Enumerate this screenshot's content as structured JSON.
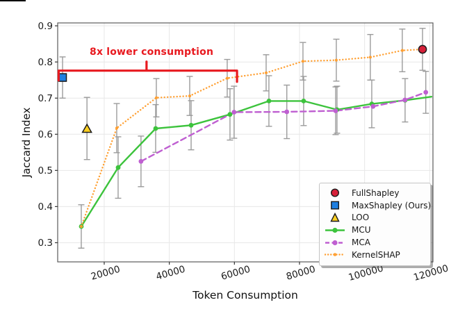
{
  "chart_data": {
    "type": "line",
    "title": "",
    "xlabel": "Token Consumption",
    "ylabel": "Jaccard Index",
    "xlim": [
      5700,
      121000
    ],
    "ylim": [
      0.247,
      0.908
    ],
    "x_ticks": [
      20000,
      40000,
      60000,
      80000,
      100000,
      120000
    ],
    "y_ticks": [
      0.3,
      0.4,
      0.5,
      0.6,
      0.7,
      0.8,
      0.9
    ],
    "grid": true,
    "legend_position": "lower right",
    "annotation": {
      "text": "8x lower consumption",
      "color": "#e8191f",
      "bracket": {
        "x_start": 6000,
        "x_end": 60800,
        "y": 0.776,
        "tick_x": 33000
      }
    },
    "series": [
      {
        "name": "MCU",
        "color": "#3cc33c",
        "line": "solid",
        "marker": "circle",
        "points": [
          [
            12950,
            0.345,
            0.06
          ],
          [
            24270,
            0.508,
            0.085
          ],
          [
            35800,
            0.616,
            0.066
          ],
          [
            46700,
            0.625,
            0.068
          ],
          [
            58640,
            0.655,
            0.071
          ],
          [
            70600,
            0.692,
            0.07
          ],
          [
            81270,
            0.692,
            0.068
          ],
          [
            91520,
            0.668,
            0.065
          ],
          [
            102200,
            0.684,
            0.066
          ],
          [
            112440,
            0.694,
            0.06
          ],
          [
            120550,
            0.704,
            0,
            0
          ]
        ]
      },
      {
        "name": "MCA",
        "color": "#bf5fd1",
        "line": "dashed",
        "marker": "circle",
        "points": [
          [
            31300,
            0.525,
            0.07
          ],
          [
            59900,
            0.661,
            0.072
          ],
          [
            76100,
            0.662,
            0.074
          ],
          [
            91100,
            0.665,
            0.066
          ],
          [
            102600,
            0.677,
            0
          ],
          [
            112400,
            0.695,
            0
          ],
          [
            118800,
            0.716,
            0.058
          ]
        ]
      },
      {
        "name": "KernelSHAP",
        "color": "#ffa033",
        "line": "dotted",
        "marker": "dot",
        "points": [
          [
            12950,
            0.345,
            0
          ],
          [
            23840,
            0.617,
            0.068
          ],
          [
            36010,
            0.701,
            0.053
          ],
          [
            46260,
            0.706,
            0.054
          ],
          [
            57790,
            0.755,
            0.052
          ],
          [
            69750,
            0.77,
            0.05
          ],
          [
            81060,
            0.802,
            0.052
          ],
          [
            91310,
            0.805,
            0.058
          ],
          [
            101760,
            0.813,
            0.063
          ],
          [
            111580,
            0.832,
            0.059
          ],
          [
            117770,
            0.835,
            0
          ]
        ]
      }
    ],
    "scatter": [
      {
        "name": "FullShapley",
        "color": "#d62039",
        "marker": "circle",
        "x": 117800,
        "y": 0.835,
        "err": 0.058
      },
      {
        "name": "MaxShapley (Ours)",
        "color": "#1f7fe0",
        "marker": "square",
        "x": 7200,
        "y": 0.757,
        "err": 0.057
      },
      {
        "name": "LOO",
        "color": "#ffd021",
        "marker": "triangle",
        "x": 14700,
        "y": 0.616,
        "err": 0.086
      }
    ],
    "legend": [
      {
        "label": "FullShapley",
        "marker": "circle",
        "color": "#d62039"
      },
      {
        "label": "MaxShapley (Ours)",
        "marker": "square",
        "color": "#1f7fe0"
      },
      {
        "label": "LOO",
        "marker": "triangle",
        "color": "#ffd021"
      },
      {
        "label": "MCU",
        "marker": "line-circle",
        "color": "#3cc33c",
        "line": "solid"
      },
      {
        "label": "MCA",
        "marker": "line-circle",
        "color": "#bf5fd1",
        "line": "dashed"
      },
      {
        "label": "KernelSHAP",
        "marker": "line-dot",
        "color": "#ffa033",
        "line": "dotted"
      }
    ],
    "colors": {
      "error_bar": "#9b9b9b",
      "grid": "#e7e7e7",
      "spine": "#5a5a5a",
      "tick_label": "#1a1a1a"
    }
  }
}
